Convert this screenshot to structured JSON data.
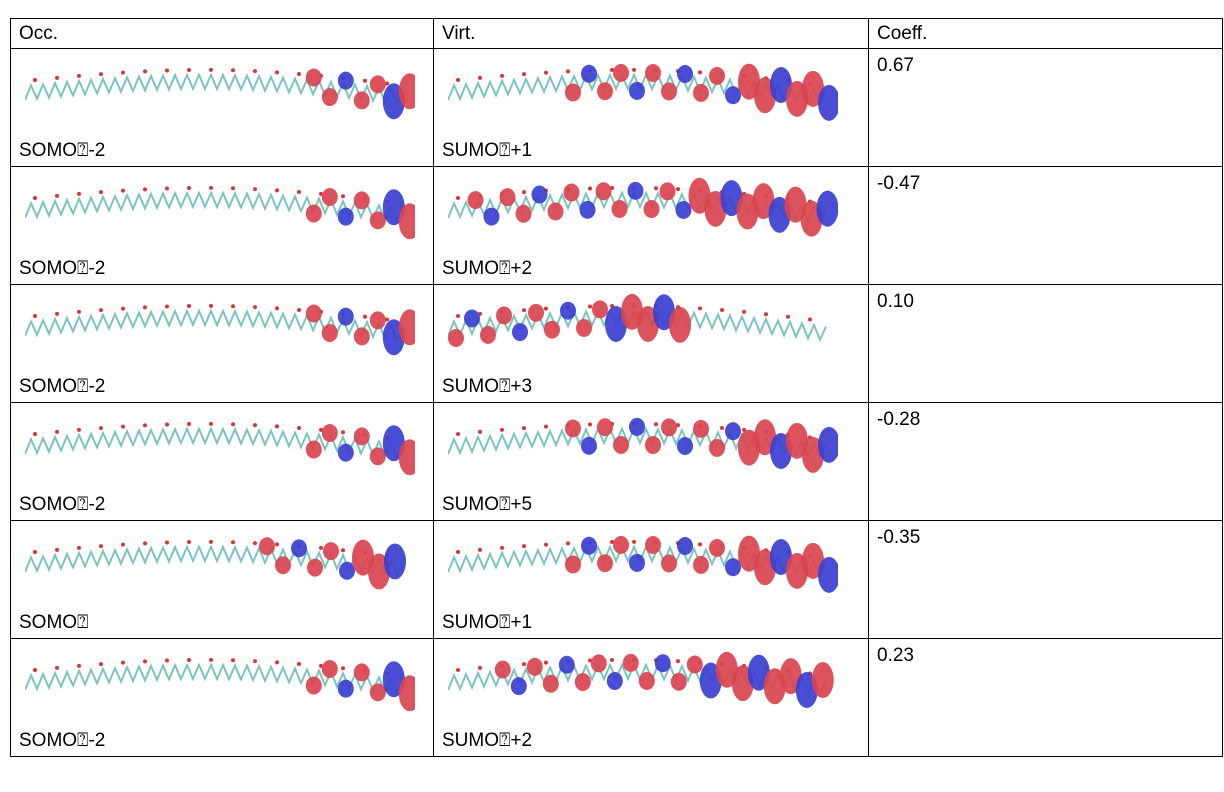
{
  "table": {
    "header": [
      "Occ.",
      "Virt.",
      "Coeff."
    ],
    "rows": [
      [
        "SOMO⍰-2",
        "SUMO⍰+1",
        "0.67"
      ],
      [
        "SOMO⍰-2",
        "SUMO⍰+2",
        "-0.47"
      ],
      [
        "SOMO⍰-2",
        "SUMO⍰+3",
        "0.10"
      ],
      [
        "SOMO⍰-2",
        "SUMO⍰+5",
        "-0.28"
      ],
      [
        "SOMO⍰",
        "SUMO⍰+1",
        "-0.35"
      ],
      [
        "SOMO⍰-2",
        "SUMO⍰+2",
        "0.23"
      ]
    ]
  }
}
